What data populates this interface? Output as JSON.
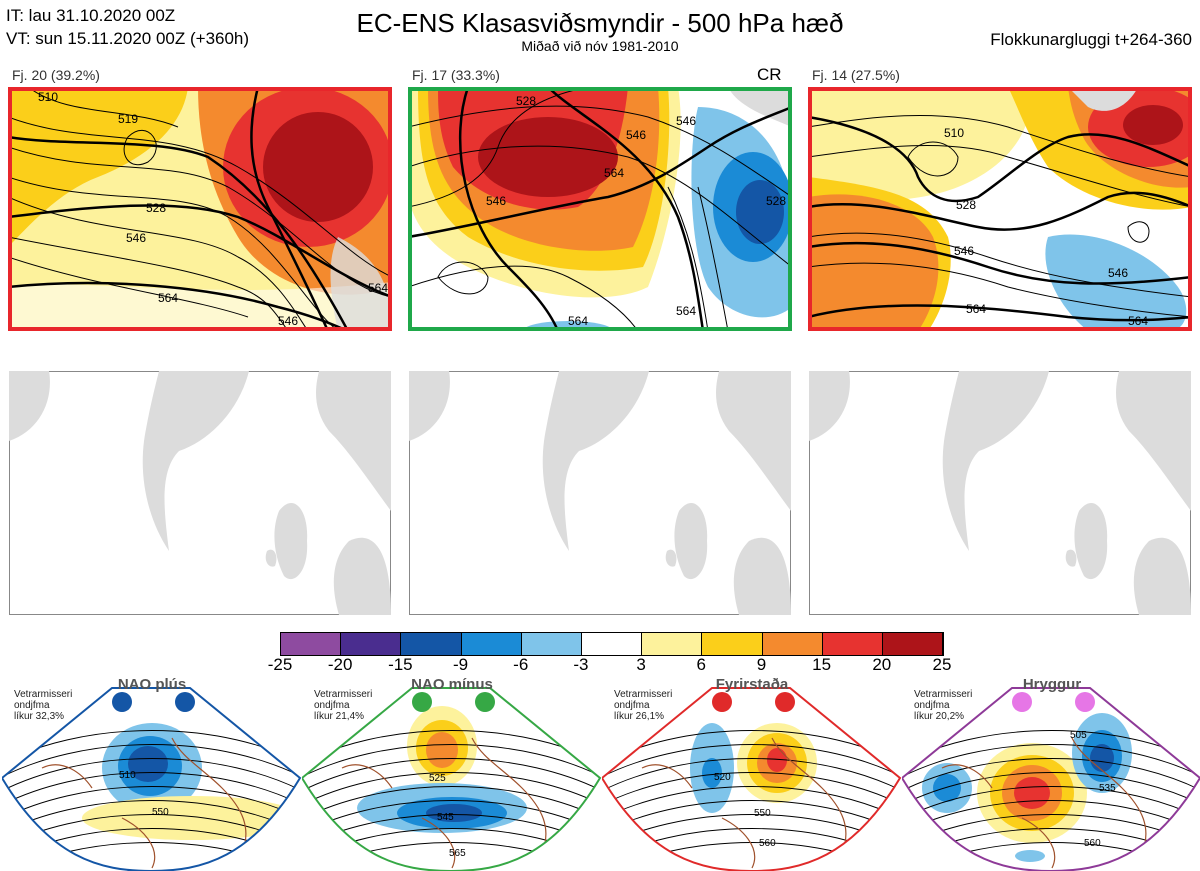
{
  "header": {
    "it_line": "IT: lau 31.10.2020 00Z",
    "vt_line": "VT: sun 15.11.2020 00Z  (+360h)",
    "title": "EC-ENS Klasasviðsmyndir - 500 hPa hæð",
    "subtitle": "Miðað við nóv 1981-2010",
    "window": "Flokkunargluggi t+264-360"
  },
  "panels": [
    {
      "label": "Fj. 20 (39.2%)",
      "border": "#e8262b",
      "tag": "",
      "contours": [
        "510",
        "519",
        "528",
        "546",
        "564",
        "546",
        "564"
      ]
    },
    {
      "label": "Fj. 17 (33.3%)",
      "border": "#1fa84a",
      "tag": "CR",
      "contours": [
        "528",
        "546",
        "564",
        "546",
        "528",
        "546",
        "564",
        "564"
      ]
    },
    {
      "label": "Fj. 14 (27.5%)",
      "border": "#e8262b",
      "tag": "",
      "contours": [
        "510",
        "528",
        "546",
        "564",
        "546",
        "564"
      ]
    }
  ],
  "colorbar": {
    "ticks": [
      "-25",
      "-20",
      "-15",
      "-9",
      "-6",
      "-3",
      "3",
      "6",
      "9",
      "15",
      "20",
      "25"
    ],
    "colors": [
      "#8e4ba0",
      "#4a2d8f",
      "#1456a6",
      "#1b8bd6",
      "#7fc4ea",
      "#ffffff",
      "#fdf29c",
      "#fbcf1a",
      "#f48a2e",
      "#e73330",
      "#ad1419"
    ]
  },
  "regimes": [
    {
      "name": "NAO plús",
      "prob": "Vetrarmisseri\nondjfma\nlíkur 32,3%",
      "border": "#1456a6",
      "dot": "#1456a6",
      "contours": [
        "510",
        "550"
      ]
    },
    {
      "name": "NAO mínus",
      "prob": "Vetrarmisseri\nondjfma\nlíkur 21,4%",
      "border": "#36a845",
      "dot": "#36a845",
      "contours": [
        "525",
        "545",
        "565"
      ]
    },
    {
      "name": "Fyrirstaða",
      "prob": "Vetrarmisseri\nondjfma\nlíkur 26,1%",
      "border": "#e02a2a",
      "dot": "#e02a2a",
      "contours": [
        "520",
        "550",
        "560"
      ]
    },
    {
      "name": "Hryggur",
      "prob": "Vetrarmisseri\nondjfma\nlíkur 20,2%",
      "border": "#8e3a98",
      "dot": "#e676e6",
      "contours": [
        "505",
        "535",
        "560"
      ]
    }
  ]
}
